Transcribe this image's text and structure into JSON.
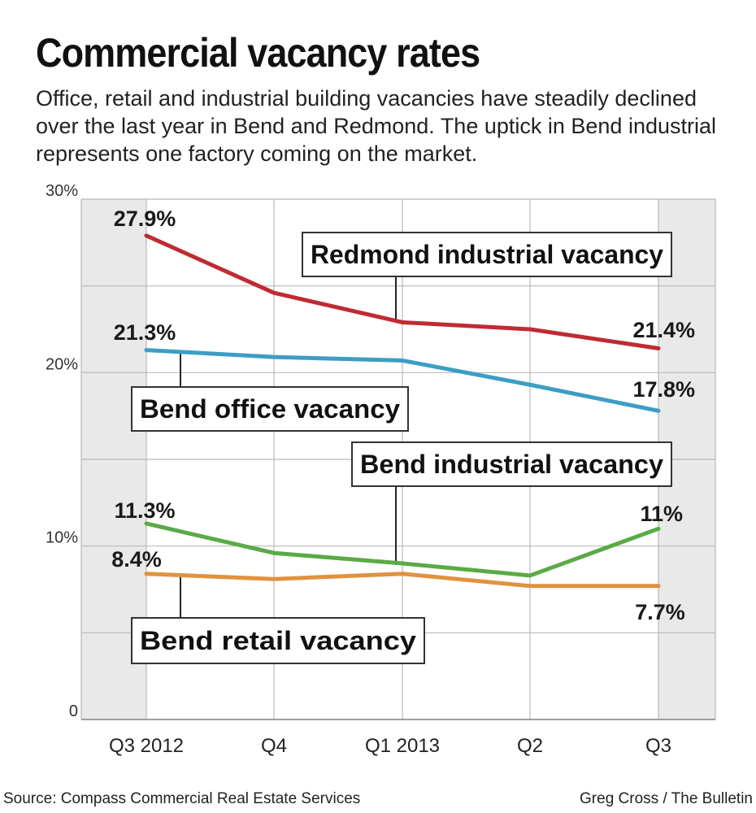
{
  "header": {
    "title": "Commercial vacancy rates",
    "subtitle": "Office, retail and industrial building vacancies have steadily declined over the last year in Bend and Redmond. The uptick in Bend industrial represents one factory coming on the market."
  },
  "footer": {
    "source": "Source: Compass Commercial Real Estate Services",
    "credit": "Greg Cross / The Bulletin"
  },
  "chart_data": {
    "type": "line",
    "categories": [
      "Q3 2012",
      "Q4",
      "Q1 2013",
      "Q2",
      "Q3"
    ],
    "ylim": [
      0,
      30
    ],
    "yticks": [
      0,
      10,
      20,
      30
    ],
    "ytick_labels": [
      "0",
      "10%",
      "20%",
      "30%"
    ],
    "grid": true,
    "series": [
      {
        "name": "Redmond industrial vacancy",
        "color": "#bf2b33",
        "values": [
          27.9,
          24.6,
          22.9,
          22.5,
          21.4
        ],
        "start_label": "27.9%",
        "end_label": "21.4%"
      },
      {
        "name": "Bend office vacancy",
        "color": "#3d9dc4",
        "values": [
          21.3,
          20.9,
          20.7,
          19.3,
          17.8
        ],
        "start_label": "21.3%",
        "end_label": "17.8%"
      },
      {
        "name": "Bend industrial vacancy",
        "color": "#5aaa45",
        "values": [
          11.3,
          9.6,
          9.0,
          8.3,
          11.0
        ],
        "start_label": "11.3%",
        "end_label": "11%"
      },
      {
        "name": "Bend retail vacancy",
        "color": "#e0923e",
        "values": [
          8.4,
          8.1,
          8.4,
          7.7,
          7.7
        ],
        "start_label": "8.4%",
        "end_label": "7.7%"
      }
    ]
  }
}
